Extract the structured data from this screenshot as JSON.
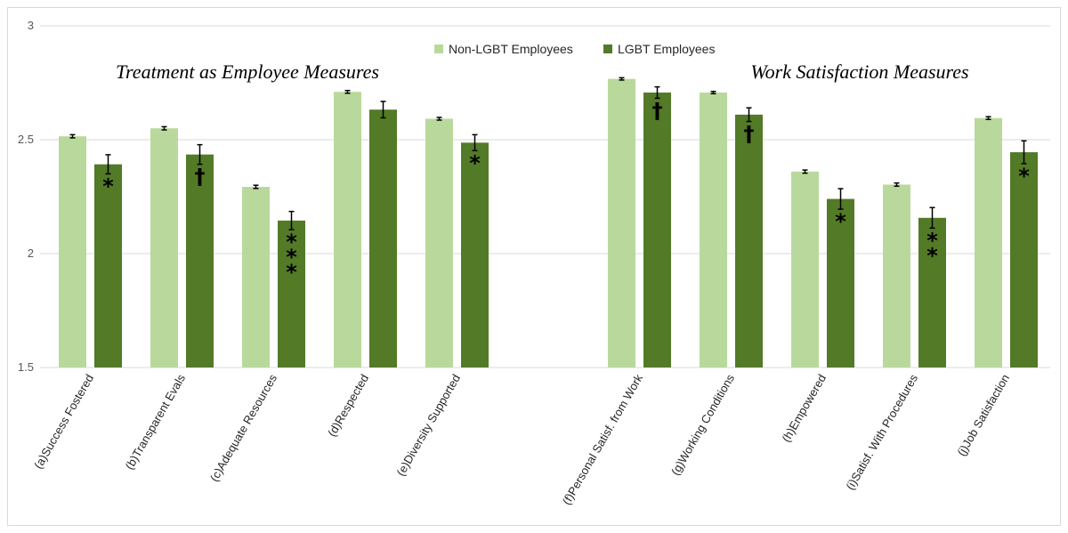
{
  "chart_data": {
    "type": "bar",
    "ylim": [
      1.5,
      3
    ],
    "yticks": [
      1.5,
      2,
      2.5,
      3
    ],
    "grid": true,
    "legend_position": "top-center",
    "sections": [
      {
        "label": "Treatment as Employee Measures",
        "categories": [
          0,
          4
        ]
      },
      {
        "label": "Work Satisfaction Measures",
        "categories": [
          5,
          9
        ]
      }
    ],
    "categories": [
      "(a)Success Fostered",
      "(b)Transparent Evals",
      "(c)Adequate Resources",
      "(d)Respected",
      "(e)Diversity Supported",
      "(f)Personal Satisf. from Work",
      "(g)Working Conditions",
      "(h)Empowered",
      "(i)Satisf. With Procedures",
      "(j)Job Satisfaction"
    ],
    "series": [
      {
        "name": "Non-LGBT Employees",
        "color": "#b9d99c",
        "values": [
          2.515,
          2.55,
          2.293,
          2.71,
          2.592,
          2.767,
          2.707,
          2.36,
          2.303,
          2.595
        ],
        "errors": [
          0.007,
          0.007,
          0.007,
          0.006,
          0.006,
          0.005,
          0.005,
          0.007,
          0.007,
          0.006
        ]
      },
      {
        "name": "LGBT Employees",
        "color": "#537a27",
        "values": [
          2.392,
          2.435,
          2.145,
          2.632,
          2.487,
          2.707,
          2.61,
          2.24,
          2.157,
          2.445
        ],
        "errors": [
          0.042,
          0.043,
          0.04,
          0.036,
          0.035,
          0.025,
          0.03,
          0.045,
          0.045,
          0.05
        ]
      }
    ],
    "significance": [
      "*",
      "†",
      "***",
      "",
      "*",
      "†",
      "†",
      "*",
      "**",
      "*"
    ]
  }
}
